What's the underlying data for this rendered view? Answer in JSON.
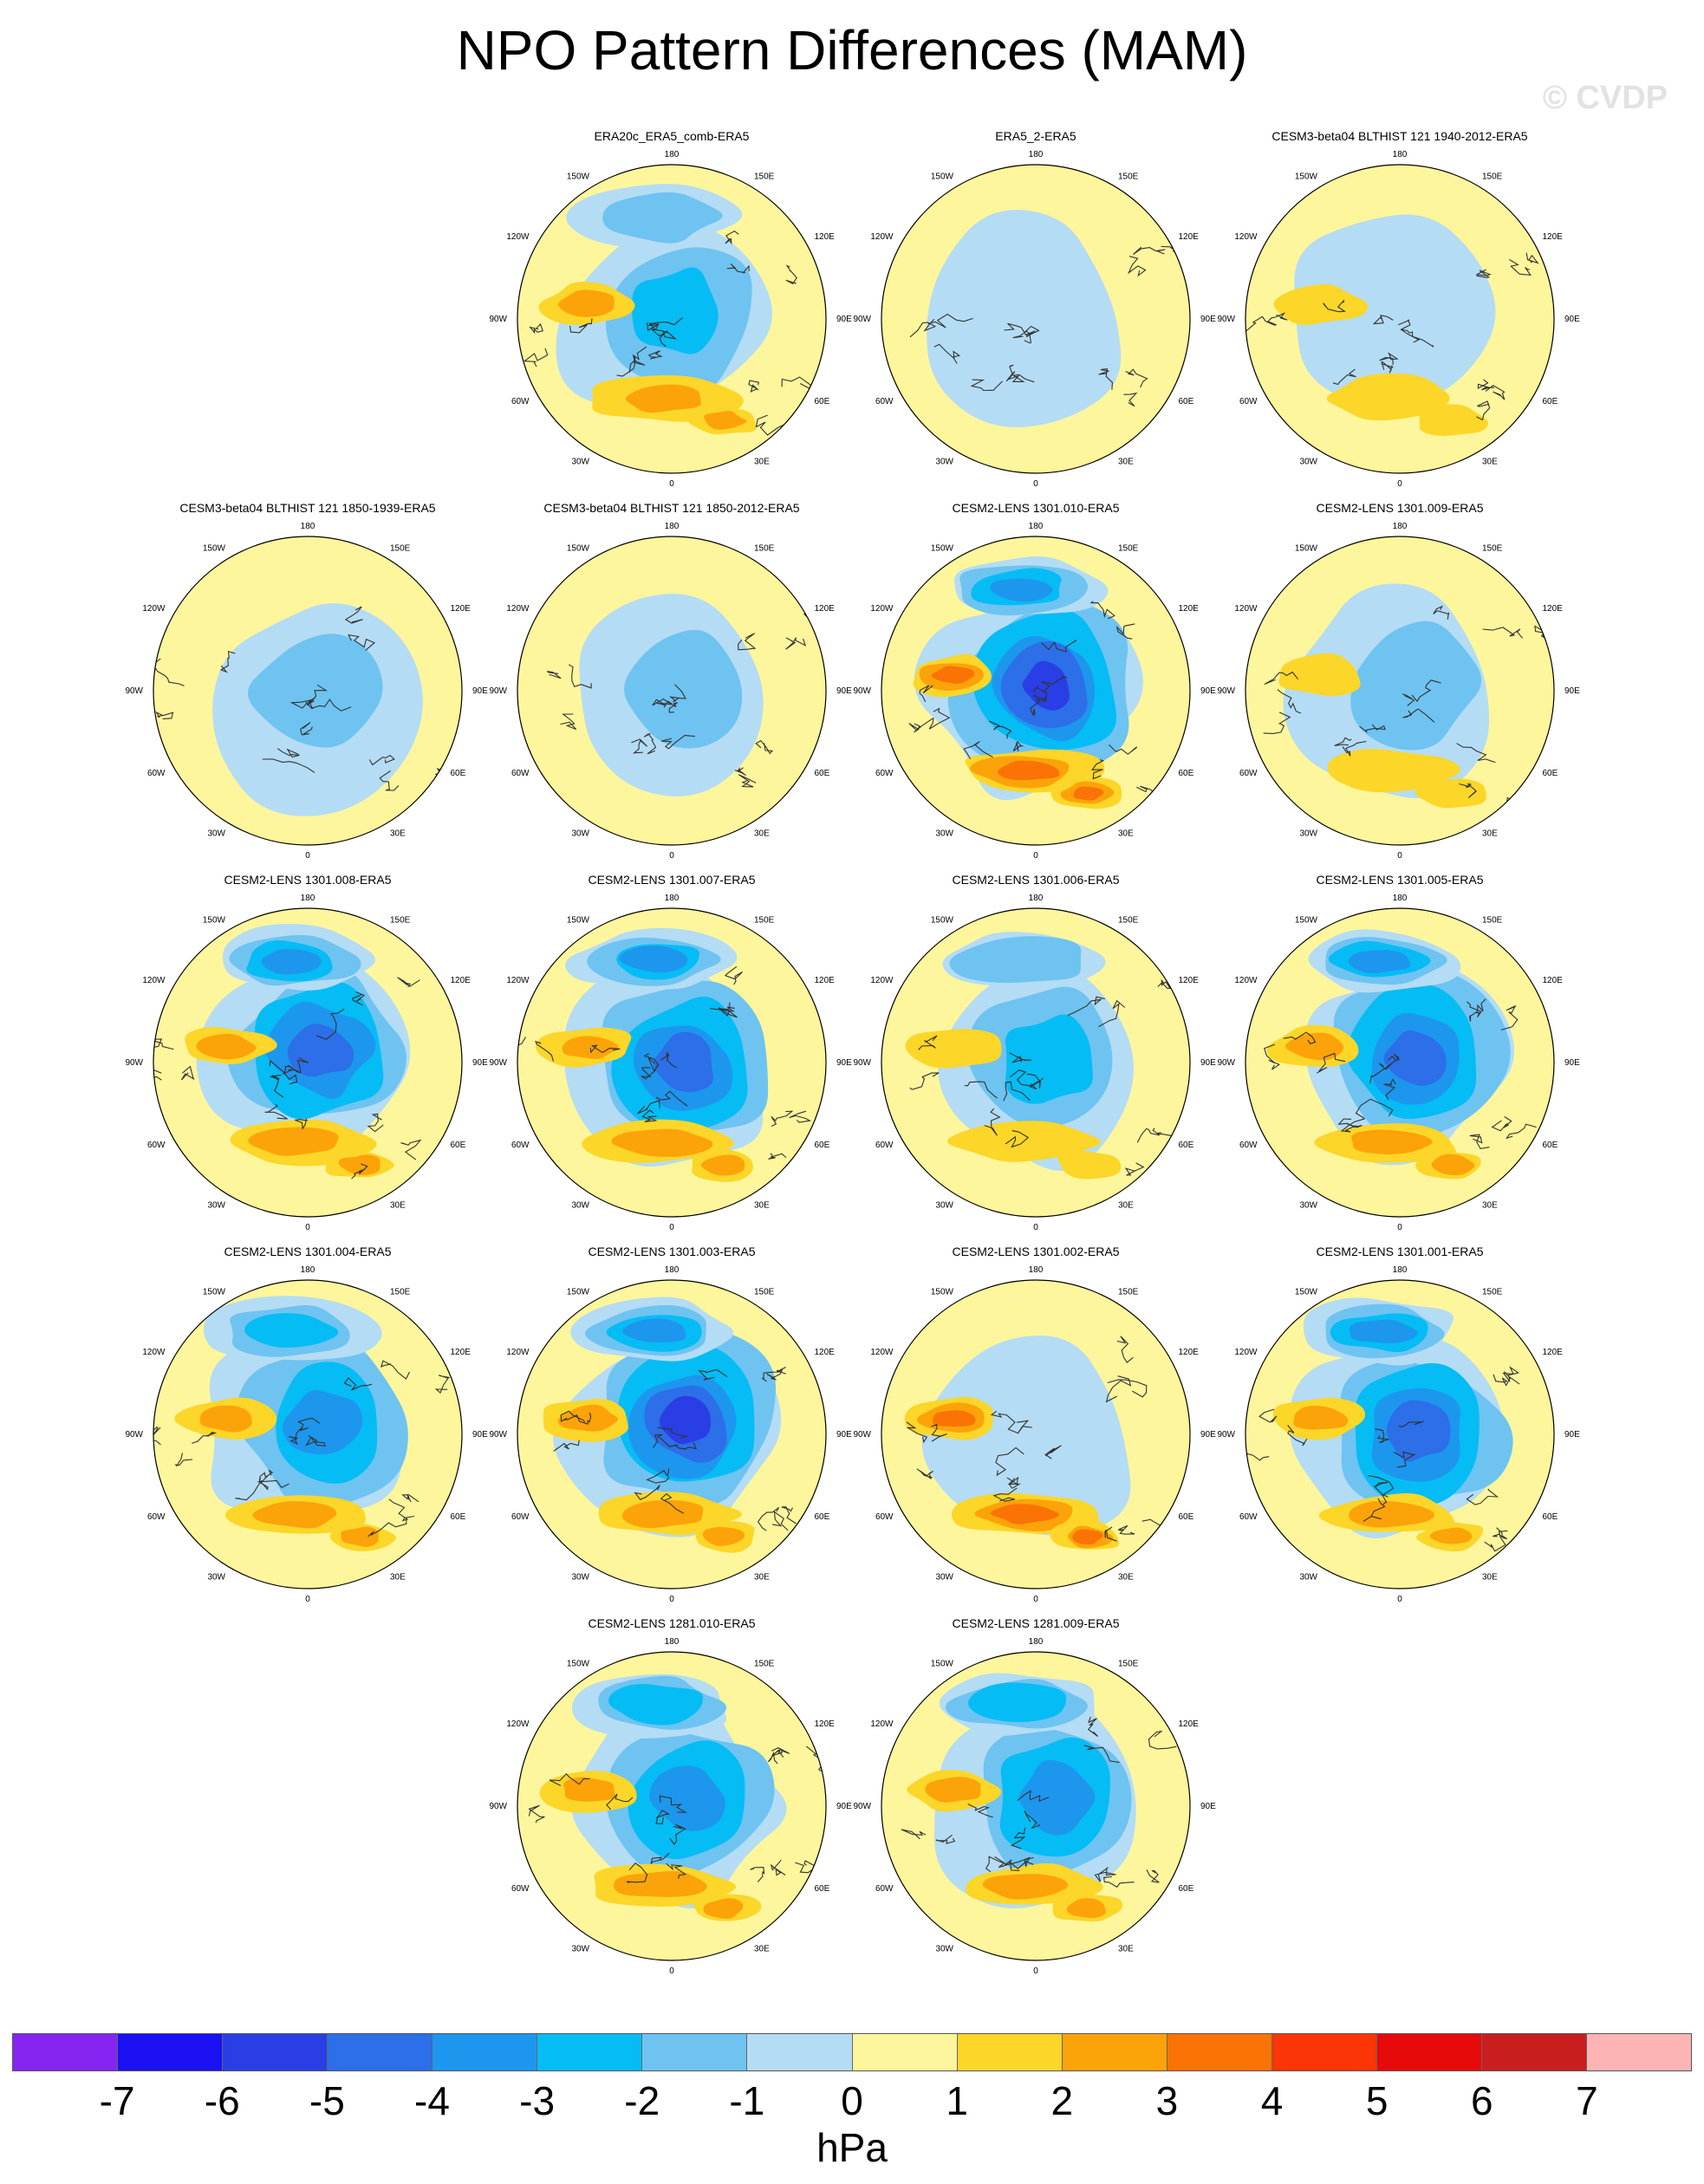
{
  "title": "NPO Pattern Differences (MAM)",
  "watermark": "© CVDP",
  "lon_labels": [
    "180",
    "150E",
    "120E",
    "90E",
    "60E",
    "30E",
    "0",
    "30W",
    "60W",
    "90W",
    "120W",
    "150W"
  ],
  "colors": {
    "land_outline": "#333333",
    "zero_fill": "#fef69c",
    "neg1": "#b4dcf4",
    "neg2": "#6ec3f1",
    "neg3": "#05bcf4",
    "neg4": "#1d96ee",
    "neg5": "#2c6fe8",
    "neg6": "#2a3ee6",
    "pos1": "#fcd628",
    "pos2": "#fca30a",
    "pos3": "#fa7304"
  },
  "chart_data": {
    "type": "heatmap",
    "variable": "NPO pattern difference (sea level pressure)",
    "season": "MAM",
    "projection": "north polar stereographic",
    "panels": [
      {
        "title": "ERA20c_ERA5_comb-ERA5",
        "row": 0,
        "col": 1,
        "min_level": -3,
        "max_level": 2
      },
      {
        "title": "ERA5_2-ERA5",
        "row": 0,
        "col": 2,
        "min_level": -1,
        "max_level": 0
      },
      {
        "title": "CESM3-beta04 BLTHIST 121 1940-2012-ERA5",
        "row": 0,
        "col": 3,
        "min_level": -1,
        "max_level": 1
      },
      {
        "title": "CESM3-beta04 BLTHIST 121 1850-1939-ERA5",
        "row": 1,
        "col": 0,
        "min_level": -2,
        "max_level": 0
      },
      {
        "title": "CESM3-beta04 BLTHIST 121 1850-2012-ERA5",
        "row": 1,
        "col": 1,
        "min_level": -2,
        "max_level": 0
      },
      {
        "title": "CESM2-LENS 1301.010-ERA5",
        "row": 1,
        "col": 2,
        "min_level": -6,
        "max_level": 3
      },
      {
        "title": "CESM2-LENS 1301.009-ERA5",
        "row": 1,
        "col": 3,
        "min_level": -2,
        "max_level": 1
      },
      {
        "title": "CESM2-LENS 1301.008-ERA5",
        "row": 2,
        "col": 0,
        "min_level": -5,
        "max_level": 2
      },
      {
        "title": "CESM2-LENS 1301.007-ERA5",
        "row": 2,
        "col": 1,
        "min_level": -5,
        "max_level": 2
      },
      {
        "title": "CESM2-LENS 1301.006-ERA5",
        "row": 2,
        "col": 2,
        "min_level": -3,
        "max_level": 1
      },
      {
        "title": "CESM2-LENS 1301.005-ERA5",
        "row": 2,
        "col": 3,
        "min_level": -5,
        "max_level": 2
      },
      {
        "title": "CESM2-LENS 1301.004-ERA5",
        "row": 3,
        "col": 0,
        "min_level": -4,
        "max_level": 2
      },
      {
        "title": "CESM2-LENS 1301.003-ERA5",
        "row": 3,
        "col": 1,
        "min_level": -6,
        "max_level": 2
      },
      {
        "title": "CESM2-LENS 1301.002-ERA5",
        "row": 3,
        "col": 2,
        "min_level": -1,
        "max_level": 3
      },
      {
        "title": "CESM2-LENS 1301.001-ERA5",
        "row": 3,
        "col": 3,
        "min_level": -5,
        "max_level": 2
      },
      {
        "title": "CESM2-LENS 1281.010-ERA5",
        "row": 4,
        "col": 1,
        "min_level": -4,
        "max_level": 2
      },
      {
        "title": "CESM2-LENS 1281.009-ERA5",
        "row": 4,
        "col": 2,
        "min_level": -4,
        "max_level": 2
      }
    ],
    "colorbar": {
      "levels": [
        -7,
        -6,
        -5,
        -4,
        -3,
        -2,
        -1,
        0,
        1,
        2,
        3,
        4,
        5,
        6,
        7
      ],
      "colors": [
        "#8425f2",
        "#1a10f2",
        "#2a3ee6",
        "#2c6fe8",
        "#1d96ee",
        "#05bcf4",
        "#6ec3f1",
        "#b4dcf4",
        "#fef69c",
        "#fcd628",
        "#fca30a",
        "#fa7304",
        "#fb3506",
        "#e60a0a",
        "#c81e1e",
        "#fcb4b4"
      ],
      "units": "hPa"
    }
  }
}
